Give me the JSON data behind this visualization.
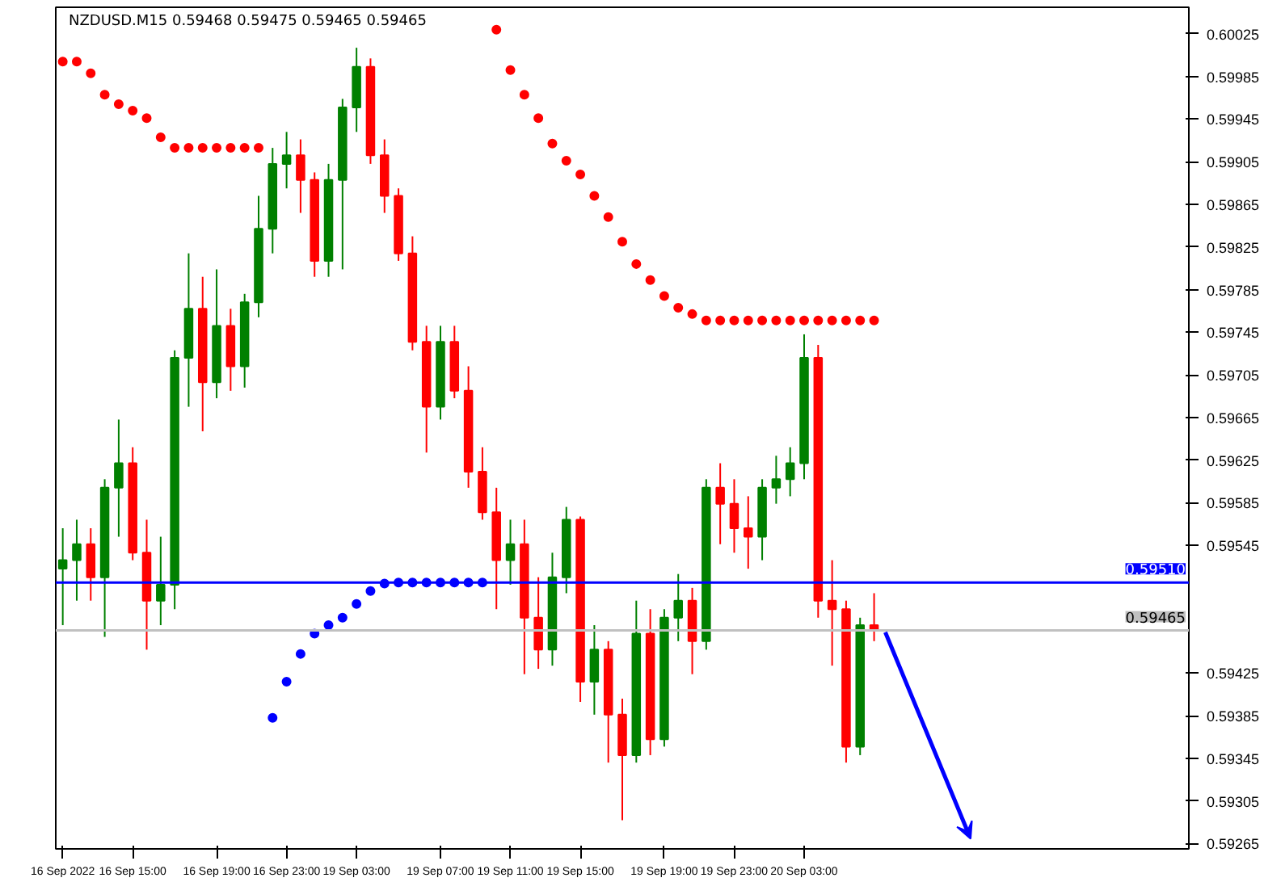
{
  "chart_data": {
    "type": "candlestick",
    "title": "NZDUSD.M15 0.59468 0.59475 0.59465 0.59465",
    "categories": [
      "16 Sep 2022",
      null,
      null,
      null,
      null,
      "16 Sep 15:00",
      null,
      null,
      null,
      null,
      null,
      "16 Sep 19:00",
      null,
      null,
      null,
      null,
      "16 Sep 23:00",
      null,
      null,
      null,
      null,
      "19 Sep 03:00",
      null,
      null,
      null,
      null,
      null,
      "19 Sep 07:00",
      null,
      null,
      null,
      null,
      "19 Sep 11:00",
      null,
      null,
      null,
      null,
      "19 Sep 15:00",
      null,
      null,
      null,
      null,
      null,
      "19 Sep 19:00",
      null,
      null,
      null,
      null,
      "19 Sep 23:00",
      null,
      null,
      null,
      null,
      "20 Sep 03:00",
      null,
      null,
      null,
      null,
      null,
      null,
      null,
      null,
      null,
      null,
      null,
      null,
      null,
      null,
      null,
      null,
      null,
      null,
      null,
      null,
      null,
      null,
      null,
      null,
      null,
      null,
      null
    ],
    "ohlc": [
      [
        0.59523,
        0.59561,
        0.5947,
        0.59531
      ],
      [
        0.59531,
        0.59569,
        0.59493,
        0.59546
      ],
      [
        0.59546,
        0.59561,
        0.59493,
        0.59515
      ],
      [
        0.59515,
        0.59607,
        0.59459,
        0.59599
      ],
      [
        0.59599,
        0.59663,
        0.59553,
        0.59622
      ],
      [
        0.59622,
        0.59637,
        0.59531,
        0.59538
      ],
      [
        0.59538,
        0.59569,
        0.59447,
        0.59493
      ],
      [
        0.59493,
        0.59553,
        0.5947,
        0.59508
      ],
      [
        0.59508,
        0.59728,
        0.59485,
        0.59721
      ],
      [
        0.59721,
        0.59819,
        0.59675,
        0.59767
      ],
      [
        0.59767,
        0.59797,
        0.59652,
        0.59698
      ],
      [
        0.59698,
        0.59804,
        0.59683,
        0.59751
      ],
      [
        0.59751,
        0.59767,
        0.5969,
        0.59713
      ],
      [
        0.59713,
        0.59781,
        0.59693,
        0.59773
      ],
      [
        0.59773,
        0.59873,
        0.59759,
        0.59842
      ],
      [
        0.59842,
        0.59918,
        0.59819,
        0.59903
      ],
      [
        0.59903,
        0.59933,
        0.5988,
        0.59911
      ],
      [
        0.59911,
        0.59926,
        0.59857,
        0.59888
      ],
      [
        0.59888,
        0.59895,
        0.59797,
        0.59812
      ],
      [
        0.59812,
        0.59903,
        0.59797,
        0.59888
      ],
      [
        0.59888,
        0.59964,
        0.59804,
        0.59956
      ],
      [
        0.59956,
        0.60012,
        0.59933,
        0.59994
      ],
      [
        0.59994,
        0.60002,
        0.59903,
        0.59911
      ],
      [
        0.59911,
        0.59926,
        0.59857,
        0.59873
      ],
      [
        0.59873,
        0.5988,
        0.59812,
        0.59819
      ],
      [
        0.59819,
        0.59835,
        0.59728,
        0.59736
      ],
      [
        0.59736,
        0.59751,
        0.59632,
        0.59675
      ],
      [
        0.59675,
        0.59751,
        0.59663,
        0.59736
      ],
      [
        0.59736,
        0.59751,
        0.59683,
        0.5969
      ],
      [
        0.5969,
        0.59713,
        0.59599,
        0.59614
      ],
      [
        0.59614,
        0.59637,
        0.59569,
        0.59576
      ],
      [
        0.59576,
        0.59599,
        0.59485,
        0.59531
      ],
      [
        0.59531,
        0.59569,
        0.59508,
        0.59546
      ],
      [
        0.59546,
        0.59569,
        0.59424,
        0.59477
      ],
      [
        0.59477,
        0.59515,
        0.59429,
        0.59447
      ],
      [
        0.59447,
        0.59538,
        0.59432,
        0.59515
      ],
      [
        0.59515,
        0.59581,
        0.595,
        0.59569
      ],
      [
        0.59569,
        0.59572,
        0.59398,
        0.59417
      ],
      [
        0.59417,
        0.5947,
        0.59386,
        0.59447
      ],
      [
        0.59447,
        0.59455,
        0.59341,
        0.59386
      ],
      [
        0.59386,
        0.59401,
        0.59287,
        0.59348
      ],
      [
        0.59348,
        0.59493,
        0.59341,
        0.59462
      ],
      [
        0.59462,
        0.59485,
        0.59348,
        0.59363
      ],
      [
        0.59363,
        0.59485,
        0.59356,
        0.59477
      ],
      [
        0.59477,
        0.59518,
        0.59455,
        0.59493
      ],
      [
        0.59493,
        0.59505,
        0.59424,
        0.59455
      ],
      [
        0.59455,
        0.59607,
        0.59447,
        0.59599
      ],
      [
        0.59599,
        0.59622,
        0.59546,
        0.59584
      ],
      [
        0.59584,
        0.59607,
        0.59538,
        0.59561
      ],
      [
        0.59561,
        0.59591,
        0.59523,
        0.59553
      ],
      [
        0.59553,
        0.59607,
        0.59531,
        0.59599
      ],
      [
        0.59599,
        0.59629,
        0.59584,
        0.59607
      ],
      [
        0.59607,
        0.59637,
        0.59591,
        0.59622
      ],
      [
        0.59622,
        0.59743,
        0.59607,
        0.59721
      ],
      [
        0.59721,
        0.59733,
        0.59477,
        0.59493
      ],
      [
        0.59493,
        0.59531,
        0.59432,
        0.59485
      ],
      [
        0.59485,
        0.59493,
        0.59341,
        0.59356
      ],
      [
        0.59356,
        0.59477,
        0.59348,
        0.5947
      ],
      [
        0.5947,
        0.595,
        0.59455,
        0.59465
      ],
      null,
      null,
      null,
      null,
      null,
      null,
      null,
      null,
      null,
      null,
      null,
      null,
      null,
      null,
      null,
      null,
      null,
      null,
      null,
      null,
      null,
      null
    ],
    "colors": [
      "#008000",
      "#008000",
      "#ff0000",
      "#008000",
      "#008000",
      "#ff0000",
      "#ff0000",
      "#008000",
      "#008000",
      "#008000",
      "#ff0000",
      "#008000",
      "#ff0000",
      "#008000",
      "#008000",
      "#008000",
      "#008000",
      "#ff0000",
      "#ff0000",
      "#008000",
      "#008000",
      "#008000",
      "#ff0000",
      "#ff0000",
      "#ff0000",
      "#ff0000",
      "#ff0000",
      "#008000",
      "#ff0000",
      "#ff0000",
      "#ff0000",
      "#ff0000",
      "#008000",
      "#ff0000",
      "#ff0000",
      "#008000",
      "#008000",
      "#ff0000",
      "#008000",
      "#ff0000",
      "#ff0000",
      "#008000",
      "#ff0000",
      "#008000",
      "#008000",
      "#ff0000",
      "#008000",
      "#ff0000",
      "#ff0000",
      "#ff0000",
      "#008000",
      "#008000",
      "#008000",
      "#008000",
      "#ff0000",
      "#ff0000",
      "#ff0000",
      "#008000",
      "#ff0000",
      null,
      null,
      null,
      null,
      null,
      null,
      null,
      null,
      null,
      null,
      null,
      null,
      null,
      null,
      null,
      null,
      null,
      null,
      null,
      null,
      null,
      null
    ],
    "series": [
      {
        "type": "scatter",
        "color": "#ff0000",
        "values": [
          0.59999,
          0.59999,
          0.59988,
          0.59968,
          0.59959,
          0.59953,
          0.59946,
          0.59928,
          0.59918,
          0.59918,
          0.59918,
          0.59918,
          0.59918,
          0.59918,
          0.59918,
          null,
          null,
          null,
          null,
          null,
          null,
          null,
          null,
          null,
          null,
          null,
          null,
          null,
          null,
          null,
          null,
          0.60029,
          0.59991,
          0.59968,
          0.59946,
          0.59922,
          0.59906,
          0.59893,
          0.59873,
          0.59853,
          0.5983,
          0.59809,
          0.59794,
          0.59779,
          0.59768,
          0.59762,
          0.59756,
          0.59756,
          0.59756,
          0.59756,
          0.59756,
          0.59756,
          0.59756,
          0.59756,
          0.59756,
          0.59756,
          0.59756,
          0.59756,
          0.59756,
          null,
          null,
          null,
          null,
          null,
          null,
          null,
          null,
          null,
          null,
          null,
          null,
          null,
          null,
          null,
          null,
          null,
          null,
          null,
          null,
          null,
          null
        ]
      },
      {
        "type": "scatter",
        "color": "#0000ff",
        "values": [
          null,
          null,
          null,
          null,
          null,
          null,
          null,
          null,
          null,
          null,
          null,
          null,
          null,
          null,
          null,
          0.59383,
          0.59417,
          0.59443,
          0.59462,
          0.5947,
          0.59477,
          0.5949,
          0.59502,
          0.59509,
          0.5951,
          0.5951,
          0.5951,
          0.5951,
          0.5951,
          0.5951,
          0.5951,
          null,
          null,
          null,
          null,
          null,
          null,
          null,
          null,
          null,
          null,
          null,
          null,
          null,
          null,
          null,
          null,
          null,
          null,
          null,
          null,
          null,
          null,
          null,
          null,
          null,
          null,
          null,
          null,
          null,
          null,
          null,
          null,
          null,
          null,
          null,
          null,
          null,
          null,
          null,
          null,
          null,
          null,
          null,
          null,
          null,
          null,
          null,
          null,
          null,
          null
        ]
      }
    ],
    "marker": "circle",
    "ylim": [
      0.5926,
      0.6005
    ],
    "yticks": [
      0.59265,
      0.59305,
      0.59345,
      0.59385,
      0.59425,
      0.59545,
      0.59585,
      0.59625,
      0.59665,
      0.59705,
      0.59745,
      0.59785,
      0.59825,
      0.59865,
      0.59905,
      0.59945,
      0.59985,
      0.60025
    ],
    "ref_lines": [
      {
        "axis": "y",
        "value": 0.5951,
        "label": "0.59510",
        "color": "#0000ff"
      },
      {
        "axis": "y",
        "value": 0.59465,
        "label": "0.59465",
        "color": "#c0c0c0"
      }
    ]
  }
}
